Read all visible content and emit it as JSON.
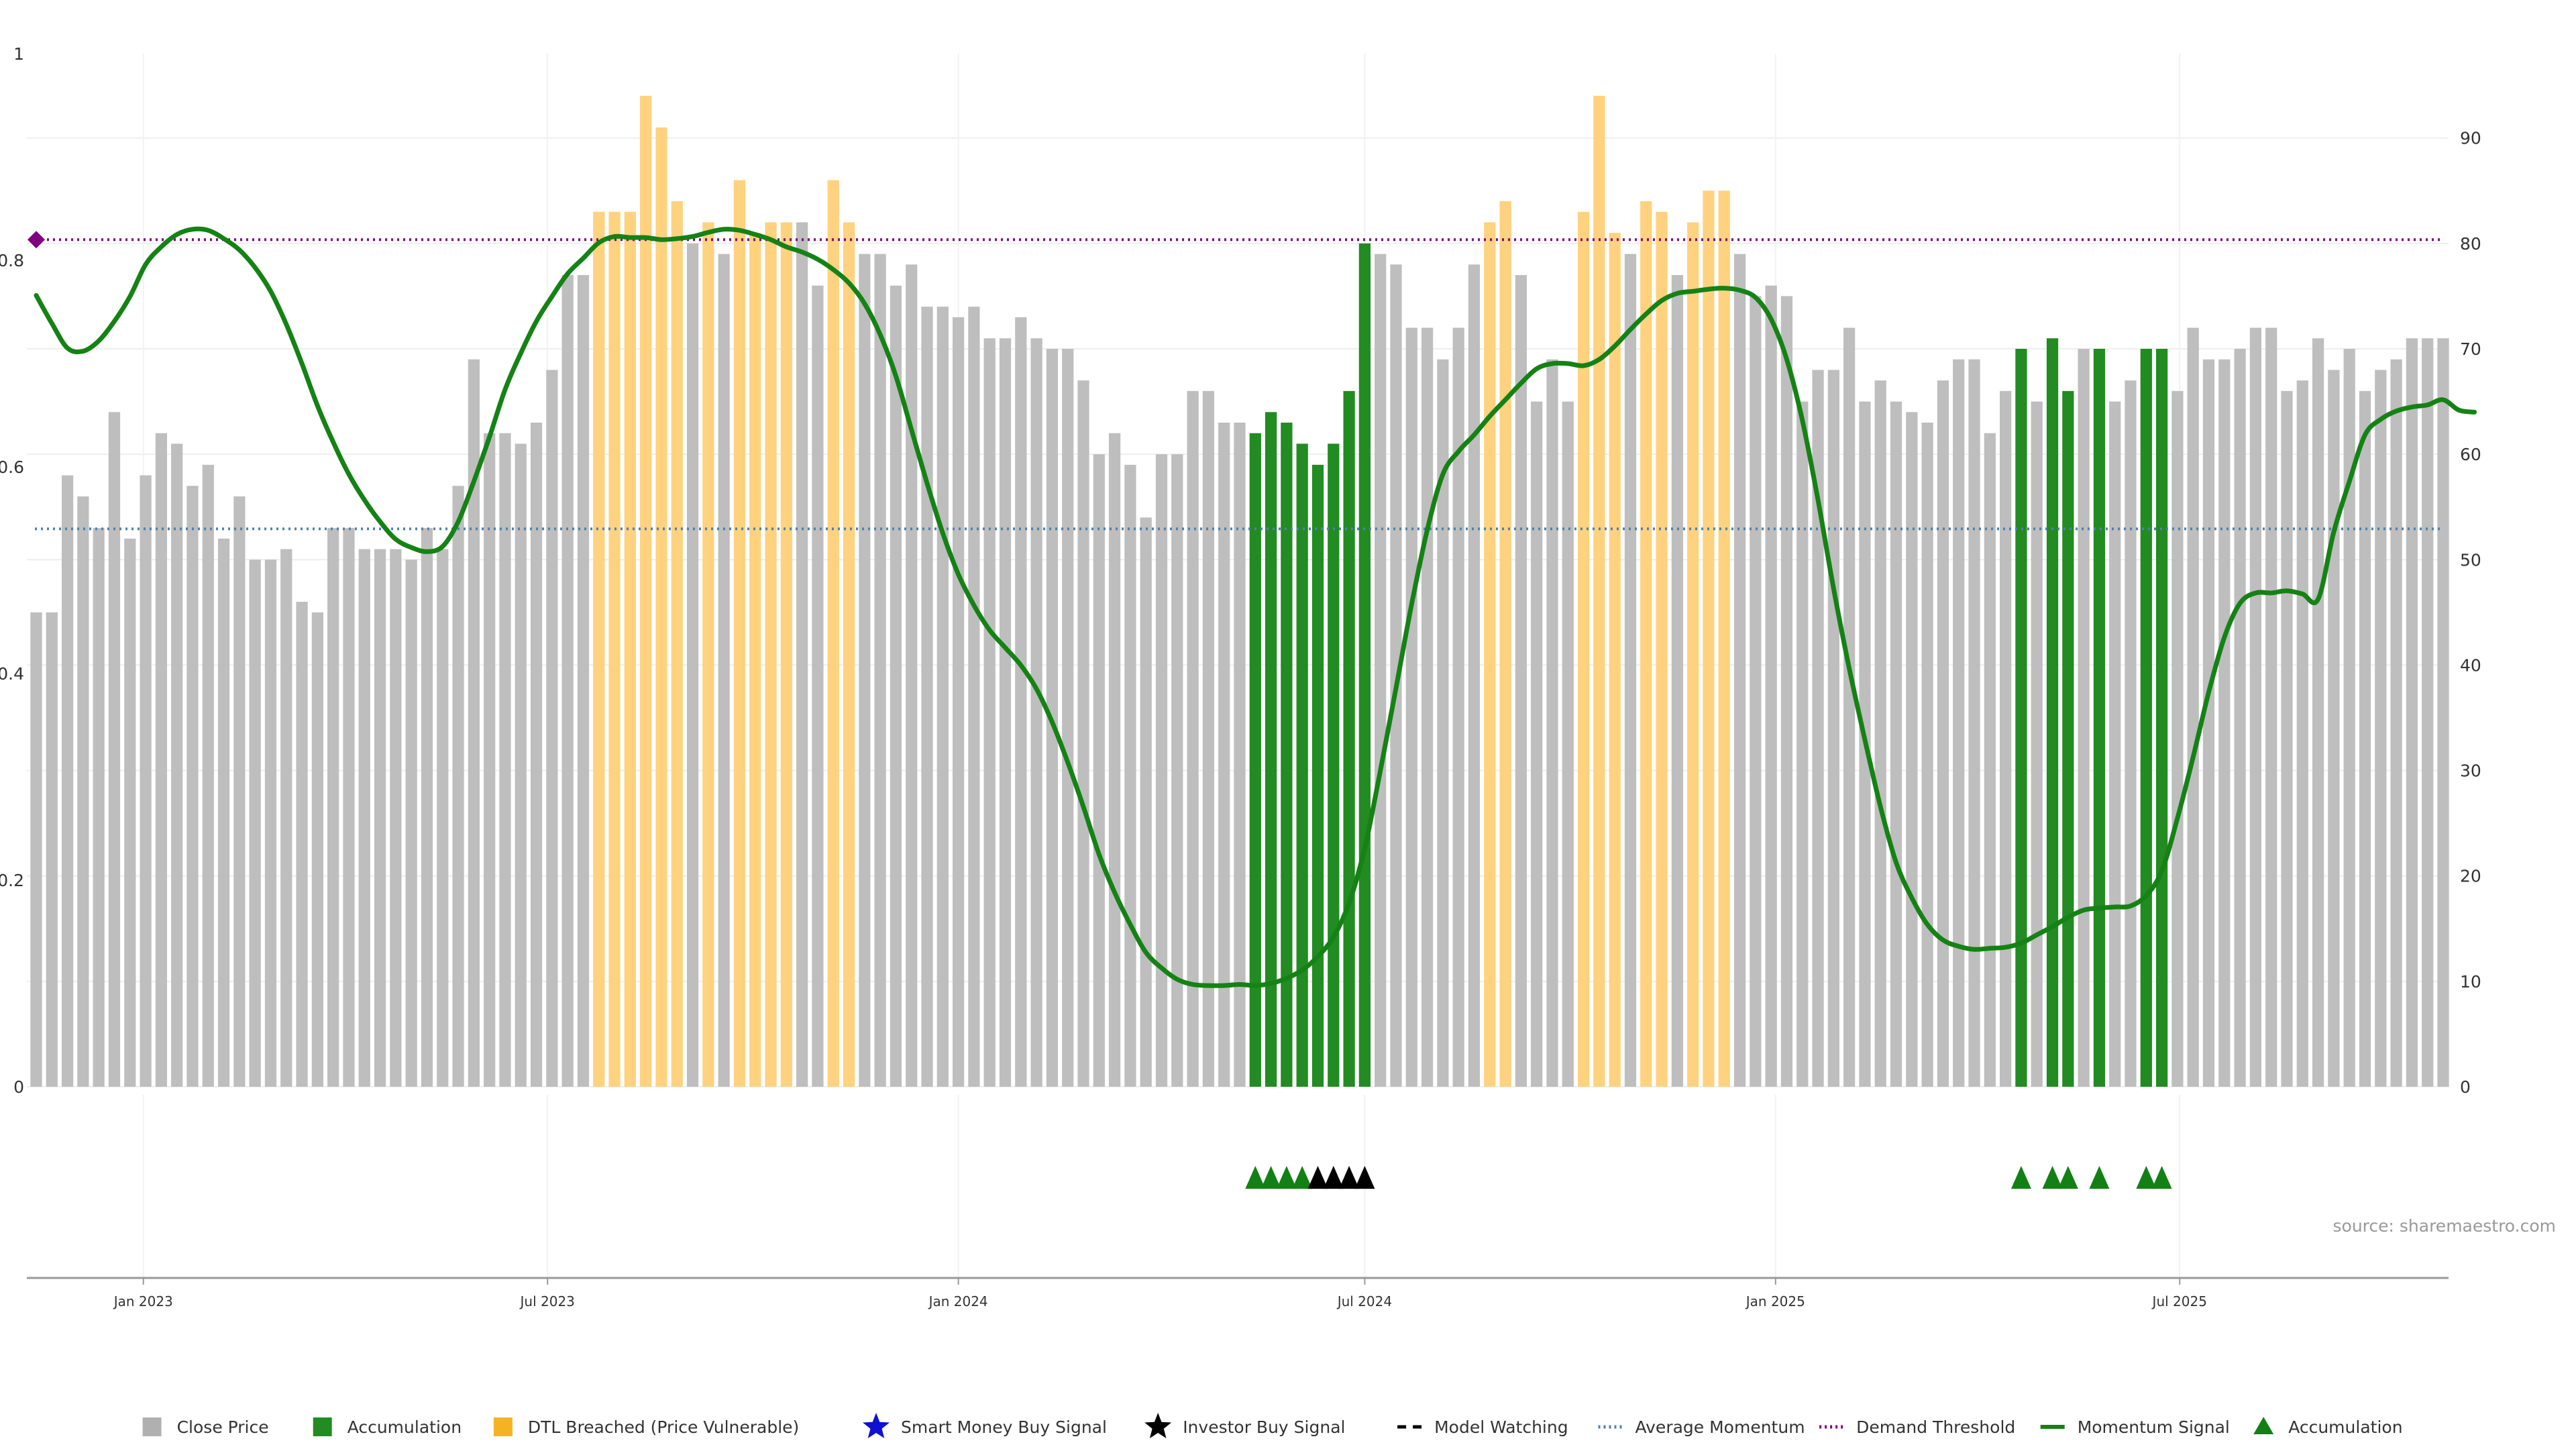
{
  "chart_data": {
    "type": "bar",
    "title": "",
    "source_note": "source: sharemaestro.com",
    "x_start": "2022-11-14",
    "x_interval": "weekly",
    "x_ticks": [
      "Jan 2023",
      "Jul 2023",
      "Jan 2024",
      "Jul 2024",
      "Jan 2025",
      "Jul 2025"
    ],
    "y_left_range": [
      0,
      1
    ],
    "y_left_ticks": [
      "0",
      "0.2",
      "0.4",
      "0.6",
      "0.8",
      "1"
    ],
    "y_right_range": [
      0,
      98
    ],
    "y_right_ticks": [
      "0",
      "10",
      "20",
      "30",
      "40",
      "50",
      "60",
      "70",
      "80",
      "90"
    ],
    "grid": true,
    "legend_position": "bottom",
    "average_momentum": 0.54,
    "demand_threshold": 0.82,
    "series": [
      {
        "name": "Close Price",
        "axis": "right",
        "values": [
          45,
          45,
          58,
          56,
          53,
          64,
          52,
          58,
          62,
          61,
          57,
          59,
          52,
          56,
          50,
          50,
          51,
          46,
          45,
          53,
          53,
          51,
          51,
          51,
          50,
          53,
          51,
          57,
          69,
          62,
          62,
          61,
          63,
          68,
          77,
          77,
          83,
          83,
          83,
          94,
          91,
          84,
          80,
          82,
          79,
          86,
          81,
          82,
          82,
          82,
          76,
          86,
          82,
          79,
          79,
          76,
          78,
          74,
          74,
          73,
          74,
          71,
          71,
          73,
          71,
          70,
          70,
          67,
          60,
          62,
          59,
          54,
          60,
          60,
          66,
          66,
          63,
          63,
          62,
          64,
          63,
          61,
          59,
          61,
          66,
          80,
          79,
          78,
          72,
          72,
          69,
          72,
          78,
          82,
          84,
          77,
          65,
          69,
          65,
          83,
          94,
          81,
          79,
          84,
          83,
          77,
          82,
          85,
          85,
          79,
          75,
          76,
          75,
          65,
          68,
          68,
          72,
          65,
          67,
          65,
          64,
          63,
          67,
          69,
          69,
          62,
          66,
          70,
          65,
          71,
          66,
          70,
          70,
          65,
          67,
          70,
          70,
          66,
          72,
          69,
          69,
          70,
          72,
          72,
          66,
          67,
          71,
          68,
          70,
          66,
          68,
          69,
          71,
          71,
          71
        ]
      },
      {
        "name": "Accumulation",
        "week_indices": [
          78,
          79,
          80,
          81,
          82,
          83,
          84,
          85,
          127,
          129,
          130,
          132,
          135,
          136
        ]
      },
      {
        "name": "DTL Breached (Price Vulnerable)",
        "week_indices": [
          36,
          37,
          38,
          39,
          40,
          41,
          43,
          45,
          46,
          47,
          48,
          51,
          52,
          93,
          94,
          99,
          100,
          101,
          103,
          104,
          106,
          107,
          108
        ]
      },
      {
        "name": "Momentum Signal",
        "axis": "left",
        "values": [
          0.766,
          0.739,
          0.715,
          0.712,
          0.722,
          0.741,
          0.765,
          0.796,
          0.813,
          0.825,
          0.83,
          0.829,
          0.821,
          0.81,
          0.793,
          0.77,
          0.738,
          0.7,
          0.659,
          0.624,
          0.593,
          0.568,
          0.547,
          0.53,
          0.522,
          0.518,
          0.523,
          0.547,
          0.586,
          0.629,
          0.675,
          0.71,
          0.741,
          0.765,
          0.787,
          0.802,
          0.817,
          0.823,
          0.822,
          0.822,
          0.82,
          0.821,
          0.823,
          0.827,
          0.83,
          0.829,
          0.825,
          0.82,
          0.813,
          0.808,
          0.801,
          0.791,
          0.778,
          0.758,
          0.728,
          0.688,
          0.636,
          0.584,
          0.536,
          0.496,
          0.466,
          0.442,
          0.425,
          0.408,
          0.385,
          0.353,
          0.314,
          0.271,
          0.225,
          0.188,
          0.157,
          0.13,
          0.115,
          0.104,
          0.099,
          0.098,
          0.098,
          0.099,
          0.098,
          0.1,
          0.105,
          0.113,
          0.126,
          0.145,
          0.178,
          0.231,
          0.306,
          0.386,
          0.467,
          0.539,
          0.593,
          0.615,
          0.631,
          0.649,
          0.665,
          0.681,
          0.695,
          0.7,
          0.7,
          0.698,
          0.704,
          0.717,
          0.733,
          0.748,
          0.761,
          0.768,
          0.77,
          0.772,
          0.773,
          0.771,
          0.764,
          0.743,
          0.704,
          0.645,
          0.568,
          0.482,
          0.405,
          0.336,
          0.271,
          0.217,
          0.183,
          0.157,
          0.142,
          0.136,
          0.133,
          0.134,
          0.135,
          0.139,
          0.147,
          0.155,
          0.164,
          0.171,
          0.173,
          0.174,
          0.175,
          0.185,
          0.209,
          0.26,
          0.319,
          0.382,
          0.435,
          0.468,
          0.478,
          0.478,
          0.48,
          0.477,
          0.472,
          0.537,
          0.586,
          0.631,
          0.646,
          0.654,
          0.658,
          0.66,
          0.665,
          0.655,
          0.653
        ]
      }
    ],
    "signals": [
      {
        "type": "Accumulation",
        "color": "#138016",
        "weeks": [
          78,
          79,
          80,
          81,
          127,
          129,
          130,
          132,
          135,
          136
        ]
      },
      {
        "type": "Investor Buy Signal",
        "color": "#000000",
        "weeks": [
          82,
          83,
          84,
          85
        ]
      }
    ],
    "colors": {
      "close_price": "#bebebe",
      "accumulation": "#228b22",
      "dtl_breached": "#ffd27f",
      "smart_money": "#1010d0",
      "investor": "#000000",
      "average_momentum": "#4f81a8",
      "demand_threshold": "#800080",
      "momentum": "#148214",
      "accumulation_marker": "#138016"
    }
  },
  "legend": [
    {
      "label": "Close Price",
      "marker": "square",
      "color": "#b0b0b0"
    },
    {
      "label": "Accumulation",
      "marker": "square",
      "color": "#228b22"
    },
    {
      "label": "DTL Breached (Price Vulnerable)",
      "marker": "square",
      "color": "#f5b324"
    },
    {
      "label": "Smart Money Buy Signal",
      "marker": "star",
      "color": "#1010d0"
    },
    {
      "label": "Investor Buy Signal",
      "marker": "star",
      "color": "#000000"
    },
    {
      "label": "Model Watching",
      "marker": "dash",
      "color": "#000000"
    },
    {
      "label": "Average Momentum",
      "marker": "dotted",
      "color": "#4f81a8"
    },
    {
      "label": "Demand Threshold",
      "marker": "dotted",
      "color": "#800080"
    },
    {
      "label": "Momentum Signal",
      "marker": "line",
      "color": "#148214"
    },
    {
      "label": "Accumulation",
      "marker": "triangle",
      "color": "#138016"
    }
  ]
}
